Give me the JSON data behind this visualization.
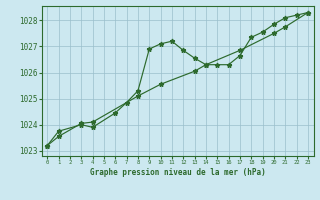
{
  "bg_color": "#cce8f0",
  "line_color": "#2d6a2d",
  "grid_color": "#9abfcc",
  "ylim": [
    1022.8,
    1028.55
  ],
  "yticks": [
    1023,
    1024,
    1025,
    1026,
    1027,
    1028
  ],
  "xticks": [
    0,
    1,
    2,
    3,
    4,
    5,
    6,
    7,
    8,
    9,
    10,
    11,
    12,
    13,
    14,
    15,
    16,
    17,
    18,
    19,
    20,
    21,
    22,
    23
  ],
  "xlabel": "Graphe pression niveau de la mer (hPa)",
  "line1_x": [
    0,
    1,
    3,
    4,
    6,
    7,
    8,
    9,
    10,
    11,
    12,
    13,
    14,
    15,
    16,
    17,
    18,
    19,
    20,
    21,
    22,
    23
  ],
  "line1_y": [
    1023.2,
    1023.75,
    1024.0,
    1023.9,
    1024.45,
    1024.85,
    1025.3,
    1026.9,
    1027.1,
    1027.2,
    1026.85,
    1026.55,
    1026.3,
    1026.3,
    1026.3,
    1026.65,
    1027.35,
    1027.55,
    1027.85,
    1028.1,
    1028.2,
    1028.3
  ],
  "line2_x": [
    0,
    1,
    3,
    4,
    8,
    10,
    13,
    14,
    17,
    20,
    21,
    23
  ],
  "line2_y": [
    1023.2,
    1023.55,
    1024.05,
    1024.1,
    1025.1,
    1025.55,
    1026.05,
    1026.3,
    1026.85,
    1027.5,
    1027.75,
    1028.3
  ]
}
